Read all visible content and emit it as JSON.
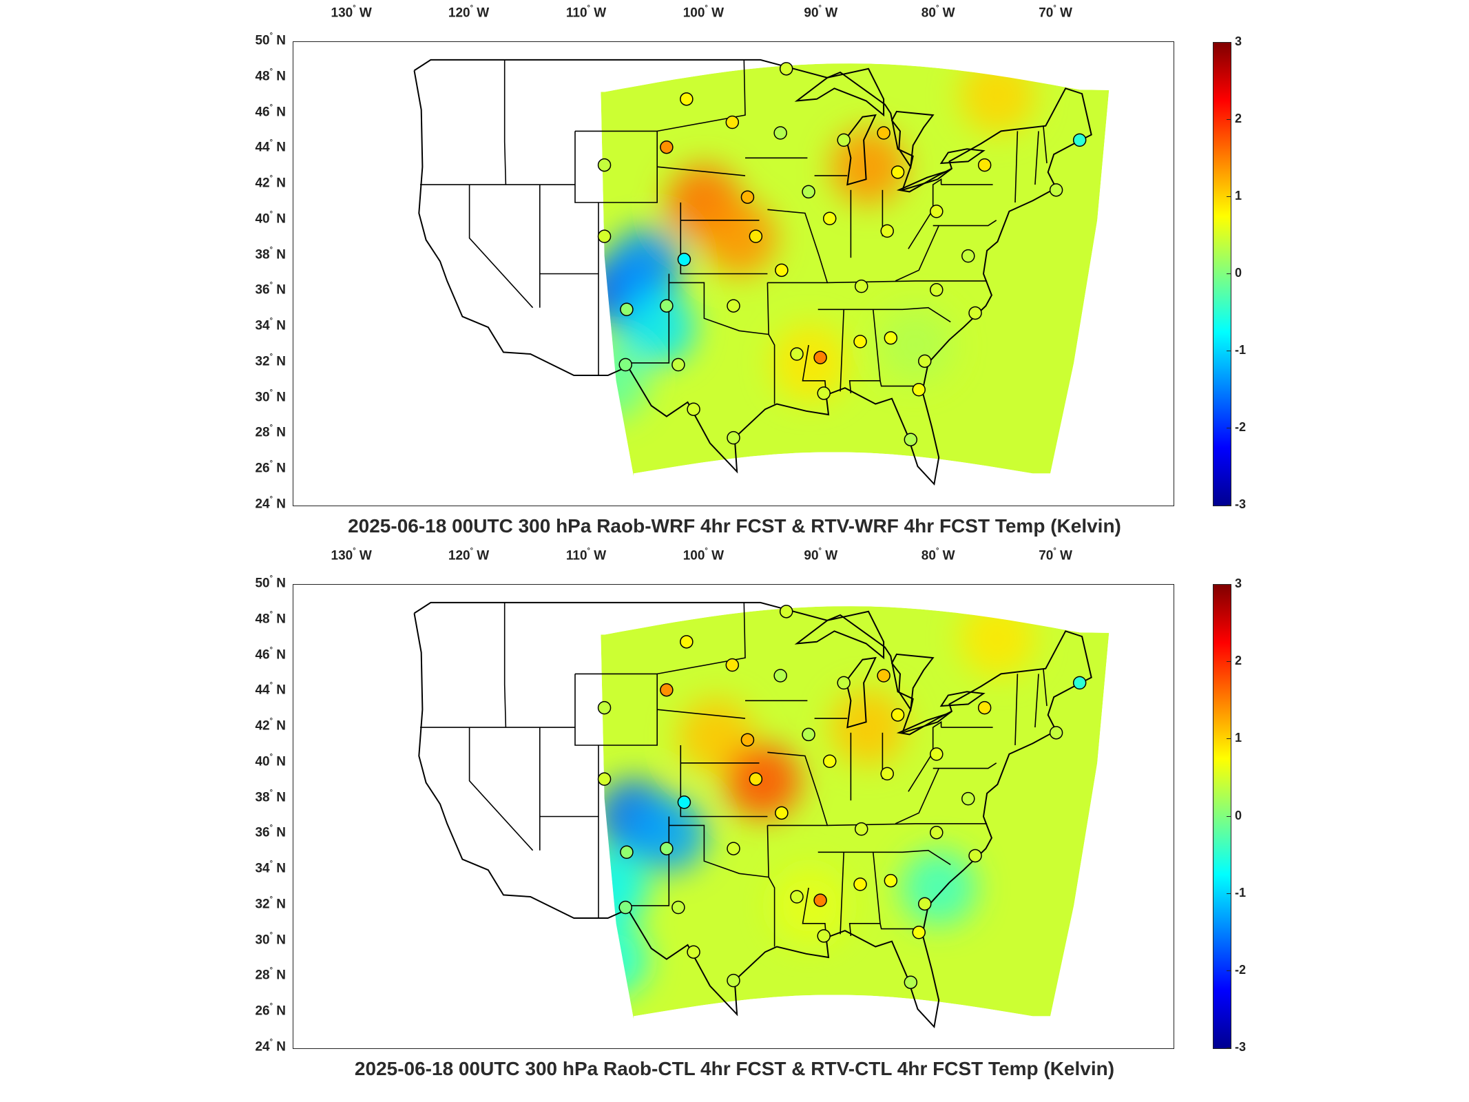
{
  "panels": [
    {
      "title": "2025-06-18 00UTC 300 hPa Raob-WRF 4hr FCST & RTV-WRF 4hr FCST Temp (Kelvin)",
      "hotspots": [
        {
          "lon": -100,
          "lat": 41,
          "v": 1.6
        },
        {
          "lon": -97,
          "lat": 39,
          "v": 1.4
        },
        {
          "lon": -86,
          "lat": 43,
          "v": 1.4
        },
        {
          "lon": -107,
          "lat": 36,
          "v": -1.8
        },
        {
          "lon": -105,
          "lat": 37.5,
          "v": -1.4
        },
        {
          "lon": -104,
          "lat": 34,
          "v": -0.9
        },
        {
          "lon": -75,
          "lat": 47,
          "v": 1.0
        },
        {
          "lon": -91,
          "lat": 32,
          "v": 0.9
        },
        {
          "lon": -82,
          "lat": 33,
          "v": 0.3
        },
        {
          "lon": -108,
          "lat": 31,
          "v": -0.2
        }
      ]
    },
    {
      "title": "2025-06-18 00UTC 300 hPa Raob-CTL 4hr FCST & RTV-CTL 4hr FCST Temp (Kelvin)",
      "hotspots": [
        {
          "lon": -99,
          "lat": 41.5,
          "v": 1.1
        },
        {
          "lon": -95,
          "lat": 39,
          "v": 1.8
        },
        {
          "lon": -86,
          "lat": 42,
          "v": 1.1
        },
        {
          "lon": -106,
          "lat": 37,
          "v": -1.6
        },
        {
          "lon": -103,
          "lat": 36,
          "v": -1.3
        },
        {
          "lon": -108,
          "lat": 33,
          "v": -0.8
        },
        {
          "lon": -75,
          "lat": 47,
          "v": 0.9
        },
        {
          "lon": -91,
          "lat": 32,
          "v": 0.6
        },
        {
          "lon": -80,
          "lat": 33,
          "v": -0.4
        },
        {
          "lon": -108,
          "lat": 29,
          "v": -0.6
        }
      ]
    }
  ],
  "lat_ticks": [
    50,
    48,
    46,
    44,
    42,
    40,
    38,
    36,
    34,
    32,
    30,
    28,
    26,
    24
  ],
  "lon_ticks": [
    -130,
    -120,
    -110,
    -100,
    -90,
    -80,
    -70
  ],
  "lat_suffix": "N",
  "lon_suffix": "W",
  "degree": "°",
  "colorbar": {
    "min": -3,
    "max": 3,
    "ticks": [
      "3",
      "2",
      "1",
      "0",
      "-1",
      "-2",
      "-3"
    ],
    "colormap": "jet",
    "colors": [
      "#00008f",
      "#0000ff",
      "#0080ff",
      "#00ffff",
      "#80ff80",
      "#ffff00",
      "#ff8000",
      "#ff0000",
      "#800000"
    ]
  },
  "stations": [
    {
      "lon": -93,
      "lat": 48.5,
      "v": 0.5
    },
    {
      "lon": -101.5,
      "lat": 46.8,
      "v": 0.8
    },
    {
      "lon": -97.6,
      "lat": 45.5,
      "v": 0.9
    },
    {
      "lon": -93.5,
      "lat": 44.9,
      "v": 0.3
    },
    {
      "lon": -88.1,
      "lat": 44.5,
      "v": 0.4
    },
    {
      "lon": -84.7,
      "lat": 44.9,
      "v": 1.1
    },
    {
      "lon": -103.2,
      "lat": 44.1,
      "v": 1.4
    },
    {
      "lon": -108.5,
      "lat": 43.1,
      "v": 0.4
    },
    {
      "lon": -83.5,
      "lat": 42.7,
      "v": 0.8
    },
    {
      "lon": -76.1,
      "lat": 43.1,
      "v": 0.9
    },
    {
      "lon": -68.0,
      "lat": 44.5,
      "v": -0.5
    },
    {
      "lon": -91.1,
      "lat": 41.6,
      "v": 0.3
    },
    {
      "lon": -96.3,
      "lat": 41.3,
      "v": 1.2
    },
    {
      "lon": -70.0,
      "lat": 41.7,
      "v": 0.4
    },
    {
      "lon": -80.2,
      "lat": 40.5,
      "v": 0.6
    },
    {
      "lon": -89.3,
      "lat": 40.1,
      "v": 0.7
    },
    {
      "lon": -84.4,
      "lat": 39.4,
      "v": 0.6
    },
    {
      "lon": -108.5,
      "lat": 39.1,
      "v": 0.5
    },
    {
      "lon": -95.6,
      "lat": 39.1,
      "v": 0.9
    },
    {
      "lon": -77.5,
      "lat": 38.0,
      "v": 0.4
    },
    {
      "lon": -101.7,
      "lat": 37.8,
      "v": -0.8
    },
    {
      "lon": -93.4,
      "lat": 37.2,
      "v": 0.8
    },
    {
      "lon": -86.6,
      "lat": 36.3,
      "v": 0.5
    },
    {
      "lon": -80.2,
      "lat": 36.1,
      "v": 0.5
    },
    {
      "lon": -97.5,
      "lat": 35.2,
      "v": 0.5
    },
    {
      "lon": -103.2,
      "lat": 35.2,
      "v": 0.1
    },
    {
      "lon": -106.6,
      "lat": 35.0,
      "v": 0.1
    },
    {
      "lon": -76.9,
      "lat": 34.8,
      "v": 0.5
    },
    {
      "lon": -86.7,
      "lat": 33.2,
      "v": 0.8
    },
    {
      "lon": -84.1,
      "lat": 33.4,
      "v": 0.7
    },
    {
      "lon": -90.1,
      "lat": 32.3,
      "v": 1.5
    },
    {
      "lon": -92.1,
      "lat": 32.5,
      "v": 0.5
    },
    {
      "lon": -81.2,
      "lat": 32.1,
      "v": 0.5
    },
    {
      "lon": -102.2,
      "lat": 31.9,
      "v": 0.4
    },
    {
      "lon": -106.7,
      "lat": 31.9,
      "v": 0.0
    },
    {
      "lon": -89.8,
      "lat": 30.3,
      "v": 0.5
    },
    {
      "lon": -81.7,
      "lat": 30.5,
      "v": 0.7
    },
    {
      "lon": -100.9,
      "lat": 29.4,
      "v": 0.5
    },
    {
      "lon": -97.5,
      "lat": 27.8,
      "v": 0.4
    },
    {
      "lon": -82.4,
      "lat": 27.7,
      "v": 0.3
    }
  ]
}
